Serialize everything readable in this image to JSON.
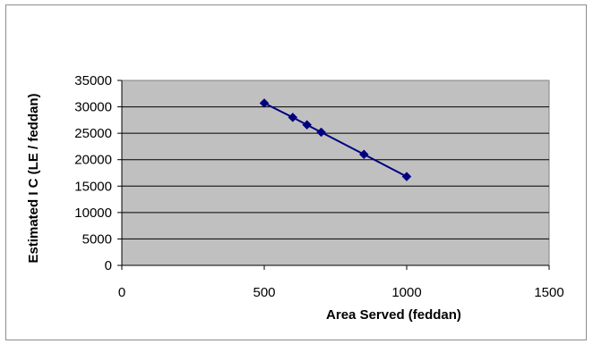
{
  "chart_data": {
    "type": "scatter",
    "title": "",
    "xlabel": "Area Served (feddan)",
    "ylabel": "Estimated I C (LE / feddan)",
    "xlim": [
      0,
      1500
    ],
    "ylim": [
      0,
      35000
    ],
    "x_ticks": [
      "0",
      "500",
      "1000",
      "1500"
    ],
    "y_ticks": [
      "0",
      "5000",
      "10000",
      "15000",
      "20000",
      "25000",
      "30000",
      "35000"
    ],
    "grid": "horizontal",
    "legend": "none",
    "series": [
      {
        "marker": "diamond",
        "connected": true,
        "x": [
          500,
          600,
          650,
          700,
          850,
          1000
        ],
        "y": [
          30700,
          28000,
          26600,
          25200,
          21000,
          16800
        ]
      }
    ]
  },
  "colors": {
    "plot_background": "#c0c0c0",
    "gridline": "#000000",
    "series": "#000080",
    "frame_border": "#8c8c8c"
  }
}
